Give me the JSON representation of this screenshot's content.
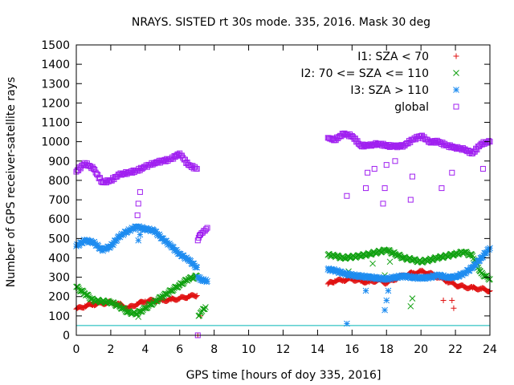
{
  "chart_data": {
    "type": "scatter",
    "title": "NRAYS. SISTED rt 30s mode. 335, 2016. Mask 30 deg",
    "xlabel": "GPS time [hours of doy 335, 2016]",
    "ylabel": "Number of GPS receiver-satellite rays",
    "xlim": [
      0,
      24
    ],
    "ylim": [
      0,
      1500
    ],
    "xticks": [
      "0",
      "2",
      "4",
      "6",
      "8",
      "10",
      "12",
      "14",
      "16",
      "18",
      "20",
      "22",
      "24"
    ],
    "yticks": [
      "0",
      "100",
      "200",
      "300",
      "400",
      "500",
      "600",
      "700",
      "800",
      "900",
      "1000",
      "1100",
      "1200",
      "1300",
      "1400",
      "1500"
    ],
    "grid": false,
    "legend_position": "top-right",
    "reference_line": {
      "y": 50,
      "color": "#00b4b4"
    },
    "series": [
      {
        "name": "I1: SZA < 70",
        "marker": "+",
        "color": "#e01010",
        "segments": [
          {
            "x": [
              0,
              0.5,
              1,
              1.5,
              2,
              2.5,
              3,
              3.5,
              4,
              4.5,
              5,
              5.5,
              6,
              6.5,
              7
            ],
            "y": [
              135,
              150,
              160,
              165,
              170,
              160,
              140,
              160,
              175,
              180,
              180,
              185,
              190,
              200,
              205
            ]
          },
          {
            "x": [
              14.6,
              15,
              15.5,
              16,
              16.5,
              17,
              17.5,
              18,
              18.5,
              19,
              19.5,
              20,
              20.5,
              21,
              21.5,
              22,
              22.5,
              23,
              23.5,
              24
            ],
            "y": [
              265,
              280,
              285,
              290,
              280,
              275,
              285,
              270,
              290,
              310,
              320,
              330,
              320,
              300,
              280,
              260,
              250,
              245,
              240,
              230
            ]
          }
        ],
        "outliers": {
          "x": [
            7.05,
            7.2,
            21.3,
            21.8,
            21.9
          ],
          "y": [
            0,
            100,
            180,
            180,
            140
          ]
        }
      },
      {
        "name": "I2: 70 <= SZA <= 110",
        "marker": "x",
        "color": "#10a010",
        "segments": [
          {
            "x": [
              0,
              0.5,
              1,
              1.5,
              2,
              2.5,
              3,
              3.5,
              4,
              4.5,
              5,
              5.5,
              6,
              6.5,
              7
            ],
            "y": [
              250,
              215,
              180,
              175,
              170,
              150,
              120,
              110,
              140,
              170,
              200,
              230,
              260,
              290,
              305
            ]
          },
          {
            "x": [
              7.1,
              7.2,
              7.3,
              7.4,
              7.5
            ],
            "y": [
              100,
              115,
              125,
              135,
              145
            ]
          },
          {
            "x": [
              14.6,
              15,
              15.5,
              16,
              16.5,
              17,
              17.5,
              18,
              18.5,
              19,
              19.5,
              20,
              20.5,
              21,
              21.5,
              22,
              22.5,
              23,
              23.5,
              24
            ],
            "y": [
              415,
              410,
              400,
              405,
              410,
              420,
              430,
              440,
              420,
              400,
              390,
              380,
              390,
              400,
              410,
              420,
              430,
              410,
              320,
              290
            ]
          }
        ],
        "outliers": {
          "x": [
            3.6,
            15.8,
            17.2,
            17.9,
            18.2,
            19.4,
            19.5
          ],
          "y": [
            95,
            330,
            370,
            310,
            380,
            150,
            190
          ]
        }
      },
      {
        "name": "I3: SZA > 110",
        "marker": "*",
        "color": "#1e8cf0",
        "segments": [
          {
            "x": [
              0,
              0.5,
              1,
              1.5,
              2,
              2.5,
              3,
              3.5,
              4,
              4.5,
              5,
              5.5,
              6,
              6.5,
              7
            ],
            "y": [
              460,
              490,
              480,
              440,
              460,
              510,
              540,
              560,
              550,
              540,
              500,
              460,
              420,
              390,
              350
            ]
          },
          {
            "x": [
              7.05,
              7.3,
              7.6
            ],
            "y": [
              300,
              285,
              280
            ]
          },
          {
            "x": [
              14.6,
              15,
              15.5,
              16,
              16.5,
              17,
              17.5,
              18,
              18.5,
              19,
              19.5,
              20,
              20.5,
              21,
              21.5,
              22,
              22.5,
              23,
              23.5,
              24
            ],
            "y": [
              340,
              335,
              320,
              310,
              305,
              300,
              295,
              290,
              300,
              305,
              300,
              295,
              300,
              310,
              300,
              300,
              320,
              350,
              400,
              450
            ]
          }
        ],
        "outliers": {
          "x": [
            3.6,
            3.7,
            15.7,
            16.8,
            17.9,
            18,
            18.1
          ],
          "y": [
            490,
            520,
            60,
            230,
            130,
            180,
            230
          ]
        }
      },
      {
        "name": "global",
        "marker": "square",
        "color": "#a020f0",
        "segments": [
          {
            "x": [
              0,
              0.5,
              1,
              1.5,
              2,
              2.5,
              3,
              3.5,
              4,
              4.5,
              5,
              5.5,
              6,
              6.5,
              7
            ],
            "y": [
              845,
              890,
              860,
              790,
              800,
              830,
              840,
              850,
              870,
              890,
              900,
              910,
              940,
              880,
              860
            ]
          },
          {
            "x": [
              7.05,
              7.2,
              7.4,
              7.6
            ],
            "y": [
              490,
              520,
              540,
              555
            ]
          },
          {
            "x": [
              14.6,
              15,
              15.5,
              16,
              16.5,
              17,
              17.5,
              18,
              18.5,
              19,
              19.5,
              20,
              20.5,
              21,
              21.5,
              22,
              22.5,
              23,
              23.5,
              24
            ],
            "y": [
              1020,
              1010,
              1040,
              1030,
              980,
              980,
              990,
              980,
              975,
              980,
              1010,
              1030,
              1000,
              1000,
              980,
              970,
              960,
              940,
              990,
              1000
            ]
          }
        ],
        "outliers": {
          "x": [
            3.55,
            3.6,
            3.7,
            7.05,
            15.7,
            16.8,
            16.9,
            17.3,
            17.8,
            17.9,
            18,
            18.5,
            19.4,
            19.5,
            21.2,
            21.8,
            23.6
          ],
          "y": [
            620,
            680,
            740,
            0,
            720,
            760,
            840,
            860,
            680,
            760,
            880,
            900,
            700,
            820,
            760,
            840,
            860
          ]
        }
      }
    ]
  }
}
